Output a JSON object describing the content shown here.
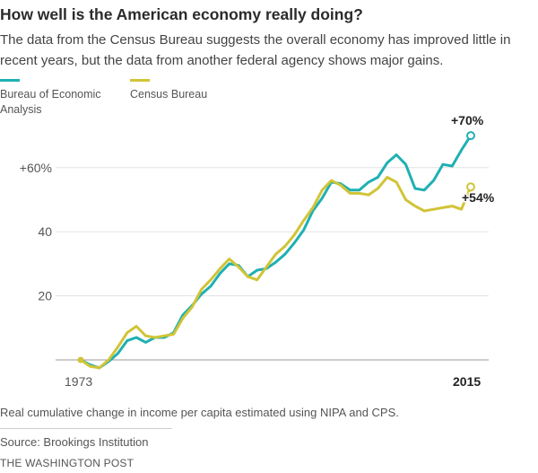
{
  "header": {
    "title": "How well is the American economy really doing?",
    "subtitle": "The data from the Census Bureau suggests the overall economy has improved little in recent years, but the data from another federal agency shows major gains."
  },
  "colors": {
    "bea": "#1fb0b3",
    "census": "#d1c437",
    "grid": "#e2e2e2",
    "axis": "#999999",
    "text": "#555555",
    "label": "#222222"
  },
  "chart_data": {
    "type": "line",
    "xlabel": "",
    "ylabel": "",
    "ylim": [
      -4,
      76
    ],
    "xlim": [
      1973,
      2015
    ],
    "grid": "horizontal",
    "legend_placement": "top-left",
    "yticks": [
      {
        "value": 60,
        "label": "+60%"
      },
      {
        "value": 40,
        "label": "40"
      },
      {
        "value": 20,
        "label": "20"
      }
    ],
    "xticks": [
      {
        "value": 1973,
        "label": "1973"
      },
      {
        "value": 2015,
        "label": "2015"
      }
    ],
    "series": [
      {
        "name": "Bureau of Economic Analysis",
        "values": [
          {
            "x": 1973,
            "y": 0
          },
          {
            "x": 1974,
            "y": -1.5
          },
          {
            "x": 1975,
            "y": -2.5
          },
          {
            "x": 1976,
            "y": -0.5
          },
          {
            "x": 1977,
            "y": 2
          },
          {
            "x": 1978,
            "y": 6
          },
          {
            "x": 1979,
            "y": 7
          },
          {
            "x": 1980,
            "y": 5.5
          },
          {
            "x": 1981,
            "y": 7
          },
          {
            "x": 1982,
            "y": 7
          },
          {
            "x": 1983,
            "y": 8.5
          },
          {
            "x": 1984,
            "y": 14
          },
          {
            "x": 1985,
            "y": 17
          },
          {
            "x": 1986,
            "y": 20.5
          },
          {
            "x": 1987,
            "y": 23
          },
          {
            "x": 1988,
            "y": 27
          },
          {
            "x": 1989,
            "y": 30
          },
          {
            "x": 1990,
            "y": 29.5
          },
          {
            "x": 1991,
            "y": 26
          },
          {
            "x": 1992,
            "y": 28
          },
          {
            "x": 1993,
            "y": 28.5
          },
          {
            "x": 1994,
            "y": 30.5
          },
          {
            "x": 1995,
            "y": 33
          },
          {
            "x": 1996,
            "y": 36.5
          },
          {
            "x": 1997,
            "y": 40.5
          },
          {
            "x": 1998,
            "y": 46.5
          },
          {
            "x": 1999,
            "y": 50.5
          },
          {
            "x": 2000,
            "y": 55.5
          },
          {
            "x": 2001,
            "y": 55
          },
          {
            "x": 2002,
            "y": 53
          },
          {
            "x": 2003,
            "y": 53
          },
          {
            "x": 2004,
            "y": 55.5
          },
          {
            "x": 2005,
            "y": 57
          },
          {
            "x": 2006,
            "y": 61.5
          },
          {
            "x": 2007,
            "y": 64
          },
          {
            "x": 2008,
            "y": 61
          },
          {
            "x": 2009,
            "y": 53.5
          },
          {
            "x": 2010,
            "y": 53
          },
          {
            "x": 2011,
            "y": 56
          },
          {
            "x": 2012,
            "y": 61
          },
          {
            "x": 2013,
            "y": 60.5
          },
          {
            "x": 2014,
            "y": 65.5
          },
          {
            "x": 2015,
            "y": 70
          }
        ],
        "end_label": "+70%"
      },
      {
        "name": "Census Bureau",
        "values": [
          {
            "x": 1973,
            "y": 0
          },
          {
            "x": 1974,
            "y": -2
          },
          {
            "x": 1975,
            "y": -2.5
          },
          {
            "x": 1976,
            "y": 0
          },
          {
            "x": 1977,
            "y": 4
          },
          {
            "x": 1978,
            "y": 8.5
          },
          {
            "x": 1979,
            "y": 10.5
          },
          {
            "x": 1980,
            "y": 7.5
          },
          {
            "x": 1981,
            "y": 7
          },
          {
            "x": 1982,
            "y": 7.5
          },
          {
            "x": 1983,
            "y": 8
          },
          {
            "x": 1984,
            "y": 13
          },
          {
            "x": 1985,
            "y": 16.5
          },
          {
            "x": 1986,
            "y": 22
          },
          {
            "x": 1987,
            "y": 25
          },
          {
            "x": 1988,
            "y": 28.5
          },
          {
            "x": 1989,
            "y": 31.5
          },
          {
            "x": 1990,
            "y": 29
          },
          {
            "x": 1991,
            "y": 26
          },
          {
            "x": 1992,
            "y": 25
          },
          {
            "x": 1993,
            "y": 29
          },
          {
            "x": 1994,
            "y": 33
          },
          {
            "x": 1995,
            "y": 35.5
          },
          {
            "x": 1996,
            "y": 39
          },
          {
            "x": 1997,
            "y": 43.5
          },
          {
            "x": 1998,
            "y": 47.5
          },
          {
            "x": 1999,
            "y": 53
          },
          {
            "x": 2000,
            "y": 56
          },
          {
            "x": 2001,
            "y": 54.5
          },
          {
            "x": 2002,
            "y": 52
          },
          {
            "x": 2003,
            "y": 52
          },
          {
            "x": 2004,
            "y": 51.5
          },
          {
            "x": 2005,
            "y": 53.5
          },
          {
            "x": 2006,
            "y": 57
          },
          {
            "x": 2007,
            "y": 55.5
          },
          {
            "x": 2008,
            "y": 50
          },
          {
            "x": 2009,
            "y": 48
          },
          {
            "x": 2010,
            "y": 46.5
          },
          {
            "x": 2011,
            "y": 47
          },
          {
            "x": 2012,
            "y": 47.5
          },
          {
            "x": 2013,
            "y": 48
          },
          {
            "x": 2014,
            "y": 47
          },
          {
            "x": 2015,
            "y": 54
          }
        ],
        "end_label": "+54%"
      }
    ]
  },
  "footer": {
    "note": "Real cumulative change in income per capita estimated using NIPA and CPS.",
    "source": "Source: Brookings Institution",
    "credit": "THE WASHINGTON POST"
  }
}
